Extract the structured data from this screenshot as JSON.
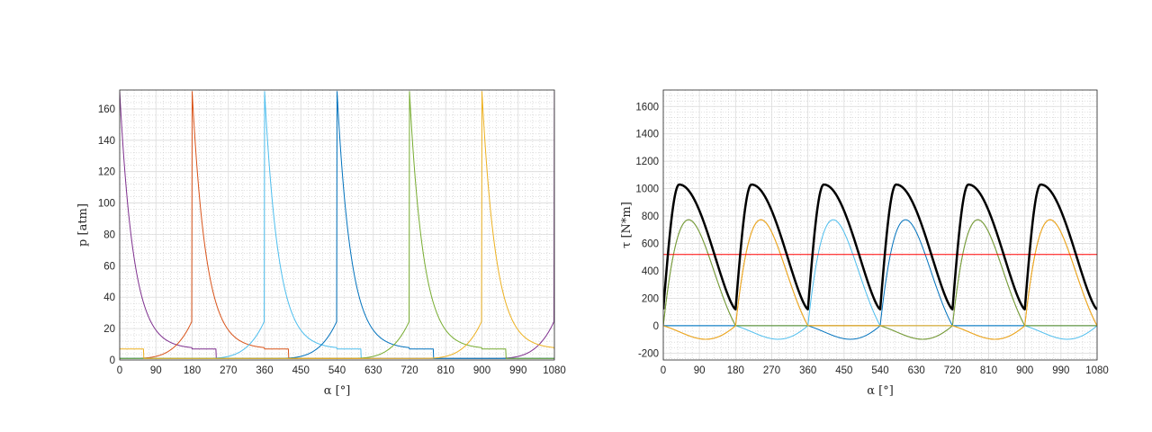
{
  "chart_data": [
    {
      "type": "line",
      "xlabel": "α [°]",
      "ylabel": "p [atm]",
      "xlim": [
        0,
        1080
      ],
      "ylim": [
        0,
        172
      ],
      "xticks": [
        0,
        90,
        180,
        270,
        360,
        450,
        540,
        630,
        720,
        810,
        900,
        990,
        1080
      ],
      "yticks": [
        0,
        20,
        40,
        60,
        80,
        100,
        120,
        140,
        160
      ],
      "grid": true,
      "minor_grid": true,
      "legend": "none",
      "peak_value": 171,
      "cylinder_cycle": {
        "compression_start_x": 0,
        "compression_end_x": 180,
        "compression_end_y": 25,
        "combustion_peak_y": 171,
        "expansion_end_x": 360,
        "expansion_end_y": 7,
        "exhaust_end_x": 420,
        "exhaust_y": 7,
        "intake_y": 1,
        "cycle_length": 1080
      },
      "series": [
        {
          "color": "#7E2F8E",
          "peak_x": 0
        },
        {
          "color": "#D95319",
          "peak_x": 180
        },
        {
          "color": "#4DBEEE",
          "peak_x": 360
        },
        {
          "color": "#0072BD",
          "peak_x": 540
        },
        {
          "color": "#77AC30",
          "peak_x": 720
        },
        {
          "color": "#EDB120",
          "peak_x": 900
        }
      ]
    },
    {
      "type": "line",
      "xlabel": "α [°]",
      "ylabel": "τ [N*m]",
      "xlim": [
        0,
        1080
      ],
      "ylim": [
        -250,
        1720
      ],
      "xticks": [
        0,
        90,
        180,
        270,
        360,
        450,
        540,
        630,
        720,
        810,
        900,
        990,
        1080
      ],
      "yticks": [
        -200,
        0,
        200,
        400,
        600,
        800,
        1000,
        1200,
        1400,
        1600
      ],
      "grid": true,
      "minor_grid": true,
      "legend": "none",
      "mean_torque": 520,
      "mean_torque_color": "#FF0000",
      "total_torque_color": "#000000",
      "total_torque": {
        "min": 120,
        "max": 1030,
        "period": 180,
        "phase": 0
      },
      "cylinder_torque": {
        "peak": 980,
        "trough": -140,
        "expansion_peak_offset": 40,
        "compression_trough_offset": 130
      },
      "series": [
        {
          "color": "#7E2F8E",
          "peak_x": 0
        },
        {
          "color": "#D95319",
          "peak_x": 180
        },
        {
          "color": "#4DBEEE",
          "peak_x": 360
        },
        {
          "color": "#0072BD",
          "peak_x": 540
        },
        {
          "color": "#77AC30",
          "peak_x": 720
        },
        {
          "color": "#EDB120",
          "peak_x": 900
        }
      ]
    }
  ]
}
